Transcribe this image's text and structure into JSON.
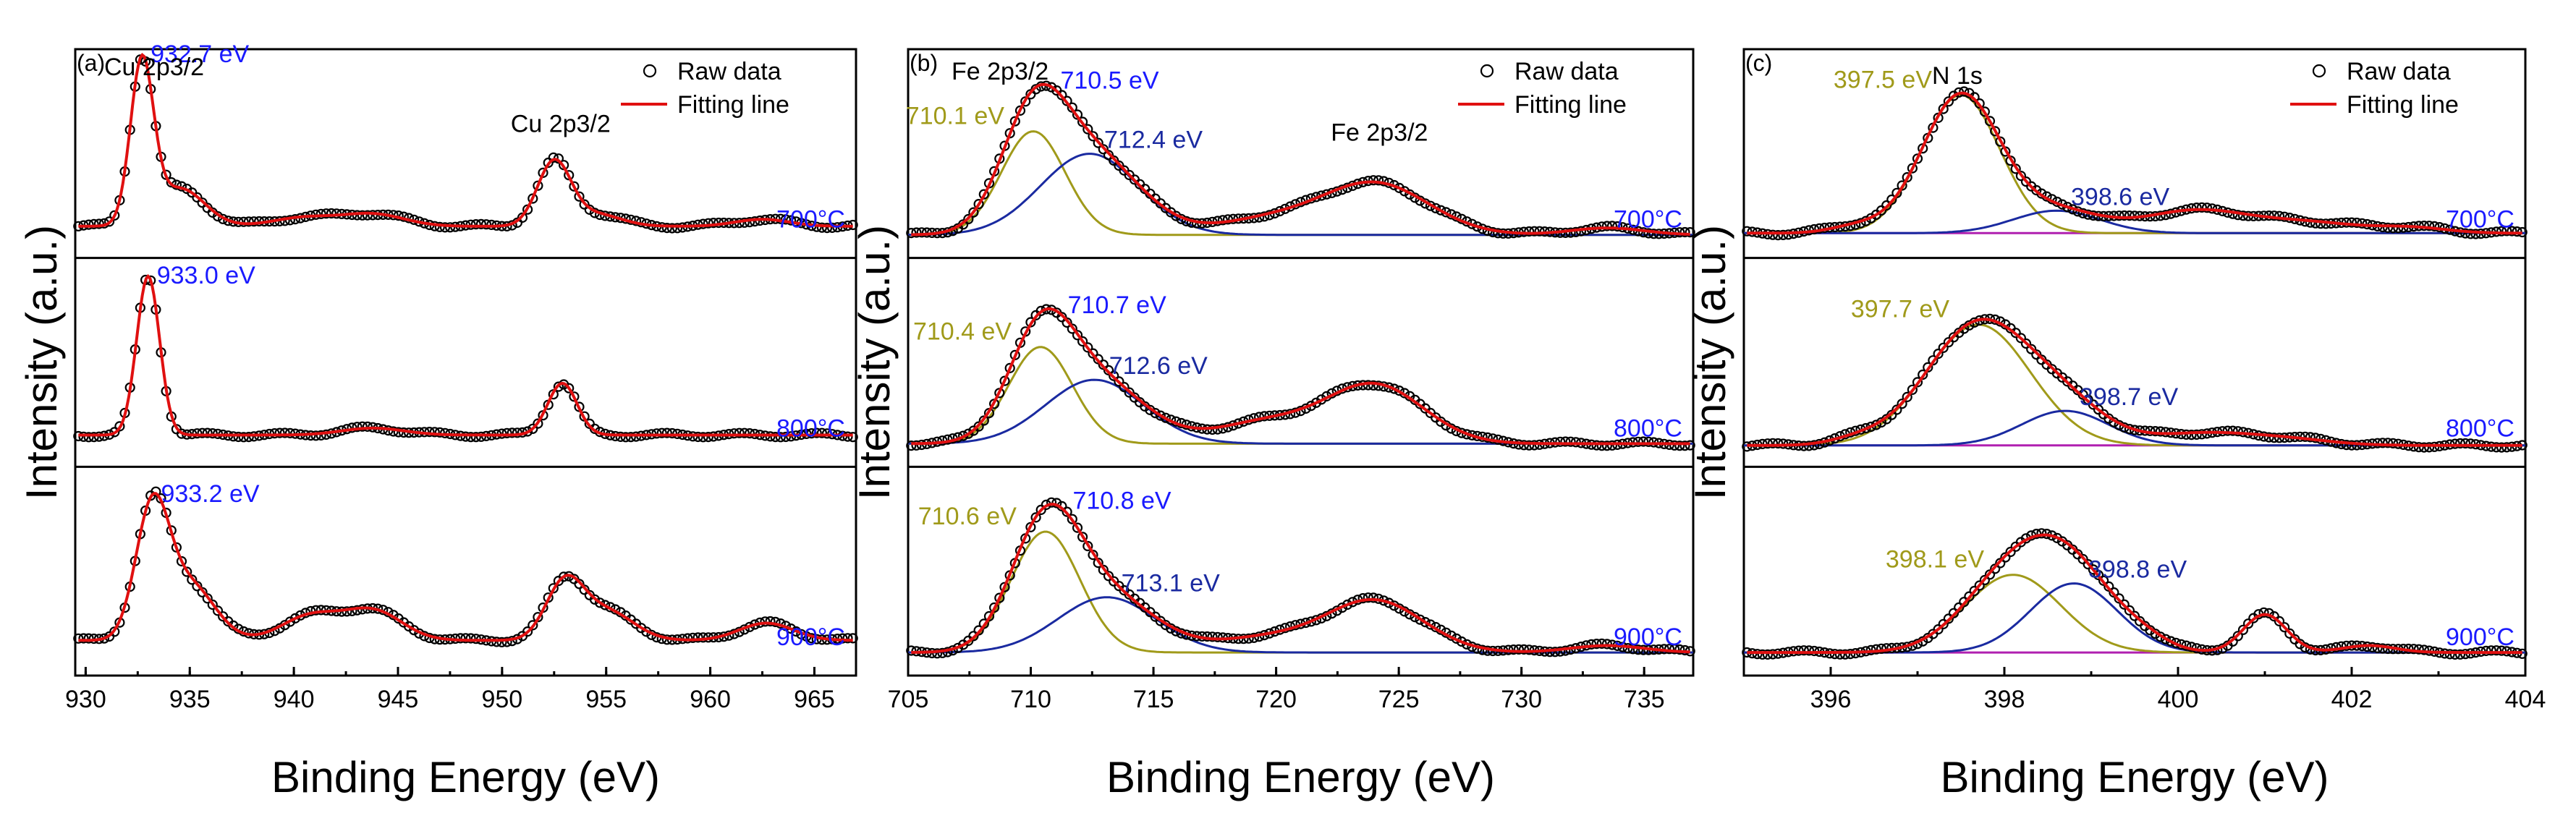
{
  "figure": {
    "y_label": "Intensity (a.u.)",
    "x_label": "Binding Energy (eV)",
    "legend": {
      "raw": "Raw data",
      "fit": "Fitting line"
    },
    "colors": {
      "raw": "#000000",
      "fit": "#e01010",
      "comp_a": "#a09a1a",
      "comp_b": "#1a2aa0",
      "bg": "#b020b0",
      "temp": "#1a1aff"
    }
  },
  "chart_data": [
    {
      "type": "line",
      "panel": "(a)",
      "title_label": "Cu 2p3/2",
      "xlabel": "Binding Energy (eV)",
      "ylabel": "Intensity (a.u.)",
      "xlim": [
        929.5,
        967
      ],
      "xticks": [
        930,
        935,
        940,
        945,
        950,
        955,
        960,
        965
      ],
      "legend": [
        "Raw data",
        "Fitting line"
      ],
      "series": [
        {
          "name": "700°C",
          "baseline": 0.1,
          "peaks": [
            {
              "center": 932.7,
              "height": 0.92,
              "width": 0.55
            },
            {
              "center": 934.5,
              "height": 0.22,
              "width": 1.2
            },
            {
              "center": 940.5,
              "height": 0.05,
              "width": 1.5
            },
            {
              "center": 943.8,
              "height": 0.07,
              "width": 1.5
            },
            {
              "center": 952.5,
              "height": 0.37,
              "width": 0.8
            },
            {
              "center": 954.5,
              "height": 0.07,
              "width": 1.2
            },
            {
              "center": 962.5,
              "height": 0.04,
              "width": 1.3
            }
          ],
          "peak_label": "932.7 eV",
          "peak_label_x": 932.7
        },
        {
          "name": "800°C",
          "baseline": 0.1,
          "peaks": [
            {
              "center": 933.0,
              "height": 0.92,
              "width": 0.55
            },
            {
              "center": 943.8,
              "height": 0.04,
              "width": 1.5
            },
            {
              "center": 952.9,
              "height": 0.3,
              "width": 0.7
            }
          ],
          "peak_label": "933.0 eV",
          "peak_label_x": 933.0
        },
        {
          "name": "900°C",
          "baseline": 0.12,
          "peaks": [
            {
              "center": 933.2,
              "height": 0.74,
              "width": 0.8
            },
            {
              "center": 935.0,
              "height": 0.32,
              "width": 1.2
            },
            {
              "center": 940.8,
              "height": 0.14,
              "width": 1.4
            },
            {
              "center": 943.8,
              "height": 0.17,
              "width": 1.4
            },
            {
              "center": 953.0,
              "height": 0.32,
              "width": 0.9
            },
            {
              "center": 955.0,
              "height": 0.17,
              "width": 1.3
            },
            {
              "center": 962.7,
              "height": 0.1,
              "width": 1.3
            }
          ],
          "peak_label": "933.2 eV",
          "peak_label_x": 933.2
        }
      ],
      "annotations": [
        {
          "text": "Cu 2p3/2",
          "x": 952.5,
          "row": 0
        }
      ]
    },
    {
      "type": "line",
      "panel": "(b)",
      "title_label": "Fe 2p3/2",
      "xlabel": "Binding Energy (eV)",
      "ylabel": "Intensity (a.u.)",
      "xlim": [
        705,
        737
      ],
      "xticks": [
        705,
        710,
        715,
        720,
        725,
        730,
        735
      ],
      "legend": [
        "Raw data",
        "Fitting line"
      ],
      "series": [
        {
          "name": "700°C",
          "baseline": 0.05,
          "components": [
            {
              "center": 710.1,
              "height": 0.6,
              "width": 1.3,
              "label": "710.1 eV",
              "color": "comp_a"
            },
            {
              "center": 712.4,
              "height": 0.47,
              "width": 2.0,
              "label": "712.4 eV",
              "color": "comp_b"
            }
          ],
          "extra": [
            {
              "center": 719.5,
              "height": 0.08,
              "width": 2.0
            },
            {
              "center": 724.0,
              "height": 0.3,
              "width": 2.2
            },
            {
              "center": 733.5,
              "height": 0.04,
              "width": 1.5
            }
          ],
          "fit_label": "710.5 eV"
        },
        {
          "name": "800°C",
          "baseline": 0.05,
          "components": [
            {
              "center": 710.4,
              "height": 0.56,
              "width": 1.3,
              "label": "710.4 eV",
              "color": "comp_a"
            },
            {
              "center": 712.6,
              "height": 0.37,
              "width": 2.0,
              "label": "712.6 eV",
              "color": "comp_b"
            }
          ],
          "extra": [
            {
              "center": 719.5,
              "height": 0.12,
              "width": 2.0
            },
            {
              "center": 724.0,
              "height": 0.34,
              "width": 2.0
            }
          ],
          "fit_label": "710.7 eV"
        },
        {
          "name": "900°C",
          "baseline": 0.05,
          "components": [
            {
              "center": 710.6,
              "height": 0.7,
              "width": 1.4,
              "label": "710.6 eV",
              "color": "comp_a"
            },
            {
              "center": 713.1,
              "height": 0.32,
              "width": 2.0,
              "label": "713.1 eV",
              "color": "comp_b"
            }
          ],
          "extra": [
            {
              "center": 719.5,
              "height": 0.08,
              "width": 2.0
            },
            {
              "center": 724.0,
              "height": 0.3,
              "width": 2.0
            },
            {
              "center": 733.5,
              "height": 0.04,
              "width": 1.5
            }
          ],
          "fit_label": "710.8 eV"
        }
      ],
      "annotations": [
        {
          "text": "Fe 2p3/2",
          "x": 724,
          "row": 0
        }
      ]
    },
    {
      "type": "line",
      "panel": "(c)",
      "title_label": "N 1s",
      "xlabel": "Binding Energy (eV)",
      "ylabel": "Intensity (a.u.)",
      "xlim": [
        395,
        404
      ],
      "xticks": [
        396,
        398,
        400,
        402,
        404
      ],
      "legend": [
        "Raw data",
        "Fitting line"
      ],
      "series": [
        {
          "name": "700°C",
          "baseline": 0.06,
          "components": [
            {
              "center": 397.5,
              "height": 0.8,
              "width": 0.45,
              "label": "397.5 eV",
              "color": "comp_a"
            },
            {
              "center": 398.6,
              "height": 0.13,
              "width": 0.5,
              "label": "398.6 eV",
              "color": "comp_b"
            }
          ],
          "extra": [
            {
              "center": 396.3,
              "height": 0.04,
              "width": 0.3
            },
            {
              "center": 400.2,
              "height": 0.13,
              "width": 0.6
            },
            {
              "center": 401.5,
              "height": 0.06,
              "width": 0.6
            },
            {
              "center": 402.7,
              "height": 0.03,
              "width": 0.4
            }
          ]
        },
        {
          "name": "800°C",
          "baseline": 0.04,
          "components": [
            {
              "center": 397.7,
              "height": 0.7,
              "width": 0.6,
              "label": "397.7 eV",
              "color": "comp_a"
            },
            {
              "center": 398.7,
              "height": 0.2,
              "width": 0.5,
              "label": "398.7 eV",
              "color": "comp_b"
            }
          ],
          "extra": [
            {
              "center": 396.3,
              "height": 0.03,
              "width": 0.3
            },
            {
              "center": 400.3,
              "height": 0.07,
              "width": 0.6
            },
            {
              "center": 401.3,
              "height": 0.03,
              "width": 0.5
            }
          ]
        },
        {
          "name": "900°C",
          "baseline": 0.05,
          "components": [
            {
              "center": 398.1,
              "height": 0.45,
              "width": 0.55,
              "label": "398.1 eV",
              "color": "comp_a"
            },
            {
              "center": 398.8,
              "height": 0.4,
              "width": 0.5,
              "label": "398.8 eV",
              "color": "comp_b"
            }
          ],
          "extra": [
            {
              "center": 399.6,
              "height": 0.05,
              "width": 0.3
            },
            {
              "center": 401.0,
              "height": 0.22,
              "width": 0.25
            },
            {
              "center": 402.2,
              "height": 0.04,
              "width": 0.3
            }
          ]
        }
      ]
    }
  ]
}
